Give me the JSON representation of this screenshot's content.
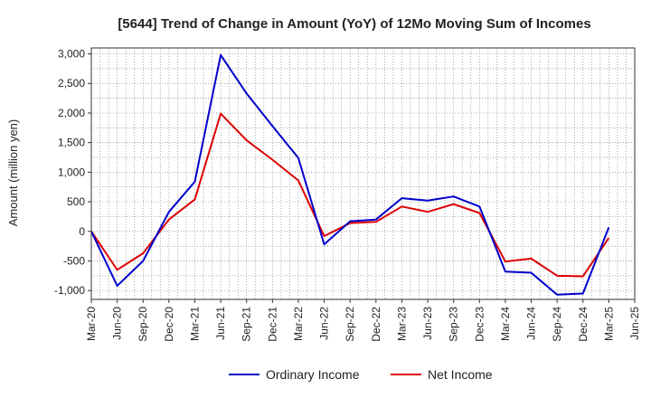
{
  "chart_data": {
    "type": "line",
    "title": "[5644]  Trend of Change in Amount (YoY) of 12Mo Moving Sum of Incomes",
    "xlabel": "",
    "ylabel": "Amount (million yen)",
    "ylim": [
      -1150,
      3100
    ],
    "yticks": [
      3000,
      2500,
      2000,
      1500,
      1000,
      500,
      0,
      -500,
      -1000
    ],
    "ytick_labels": [
      "3,000",
      "2,500",
      "2,000",
      "1,500",
      "1,000",
      "500",
      "0",
      "-500",
      "-1,000"
    ],
    "x": [
      "Mar-20",
      "Jun-20",
      "Sep-20",
      "Dec-20",
      "Mar-21",
      "Jun-21",
      "Sep-21",
      "Dec-21",
      "Mar-22",
      "Jun-22",
      "Sep-22",
      "Dec-22",
      "Mar-23",
      "Jun-23",
      "Sep-23",
      "Dec-23",
      "Mar-24",
      "Jun-24",
      "Sep-24",
      "Dec-24",
      "Mar-25",
      "Jun-25"
    ],
    "grid": true,
    "legend_position": "bottom",
    "series": [
      {
        "name": "Ordinary Income",
        "color": "#0000cc",
        "values": [
          0,
          -920,
          -500,
          330,
          840,
          2980,
          2330,
          1780,
          1240,
          -220,
          170,
          200,
          560,
          520,
          590,
          420,
          -680,
          -700,
          -1070,
          -1050,
          70,
          null
        ]
      },
      {
        "name": "Net Income",
        "color": "#dd0000",
        "values": [
          0,
          -650,
          -370,
          200,
          540,
          1990,
          1540,
          1210,
          860,
          -80,
          140,
          160,
          420,
          330,
          460,
          310,
          -510,
          -460,
          -750,
          -760,
          -110,
          null
        ]
      }
    ]
  }
}
